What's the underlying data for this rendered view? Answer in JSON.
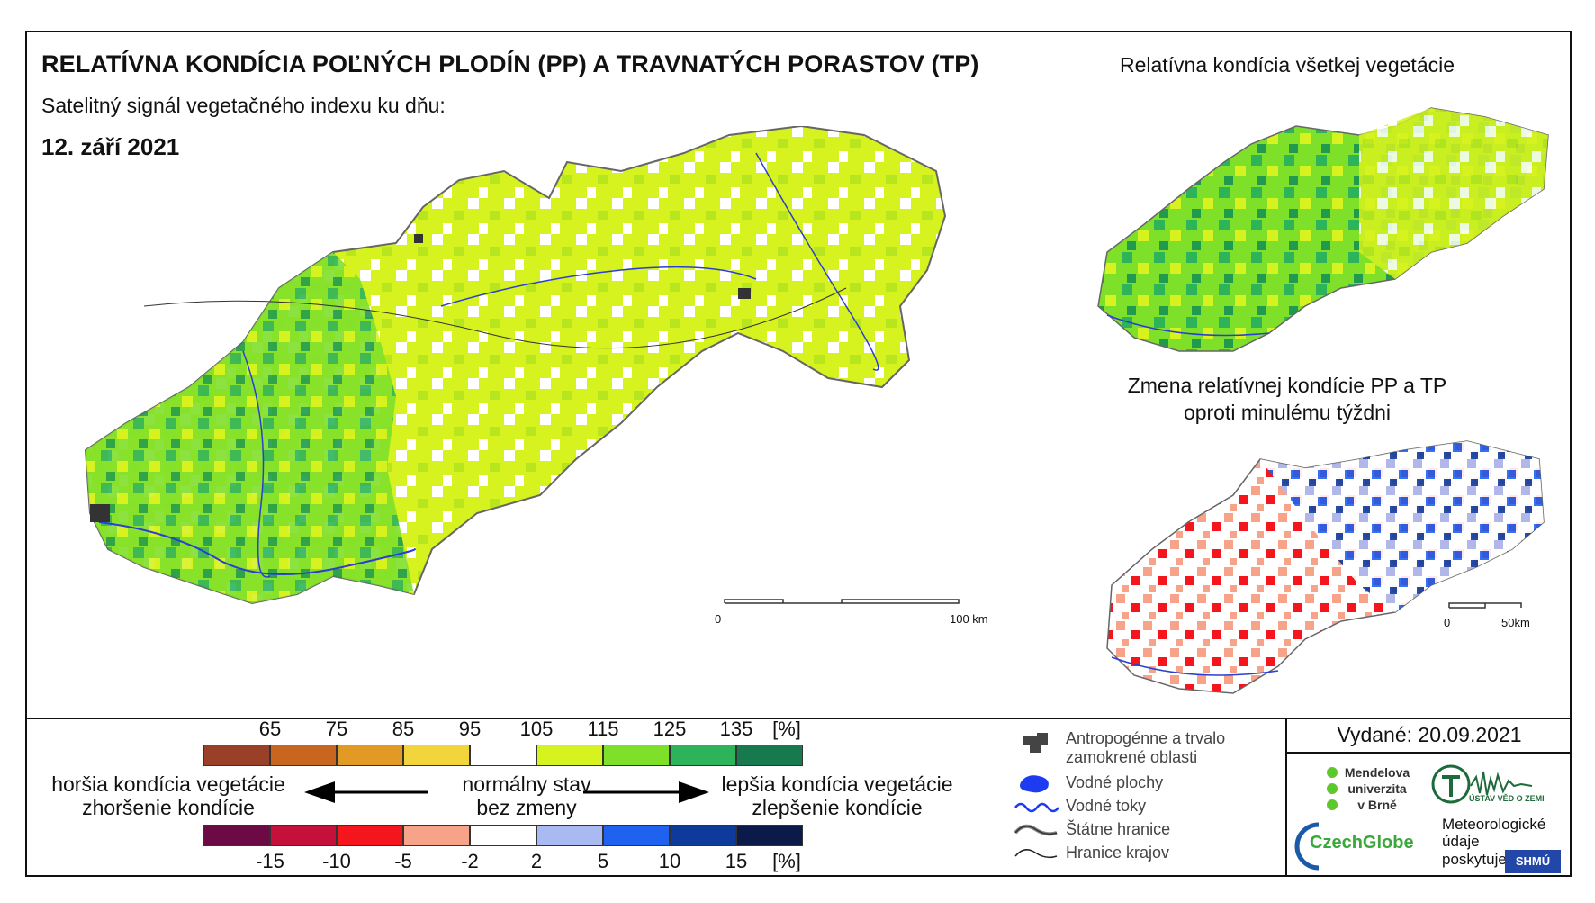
{
  "header": {
    "title": "RELATÍVNA KONDÍCIA POĽNÝCH PLODÍN (PP) A TRAVNATÝCH PORASTOV (TP)",
    "subtitle": "Satelitný signál vegetačného indexu ku dňu:",
    "date": "12. září 2021"
  },
  "right_panels": {
    "top_title": "Relatívna kondícia všetkej vegetácie",
    "bottom_title_line1": "Zmena relatívnej kondície PP a TP",
    "bottom_title_line2": "oproti minulému týždni"
  },
  "scale_bars": {
    "main_start": "0",
    "main_end": "100 km",
    "small_start": "0",
    "small_end": "50km"
  },
  "condition_scale": {
    "ticks": [
      "65",
      "75",
      "85",
      "95",
      "105",
      "115",
      "125",
      "135",
      "[%]"
    ],
    "colors": [
      "#9a3f28",
      "#c8651f",
      "#e39a25",
      "#f1d53a",
      "#ffffff",
      "#d6f21f",
      "#7fe02a",
      "#2db359",
      "#177a4e"
    ]
  },
  "change_scale": {
    "ticks": [
      "-15",
      "-10",
      "-5",
      "-2",
      "2",
      "5",
      "10",
      "15",
      "[%]"
    ],
    "colors": [
      "#6b0a44",
      "#c4103a",
      "#f5151c",
      "#f7a38a",
      "#ffffff",
      "#a9b9f2",
      "#1f62f0",
      "#0e3a9c",
      "#0c1a4a"
    ]
  },
  "labels": {
    "worse_line1": "horšia kondícia vegetácie",
    "worse_line2": "zhoršenie kondície",
    "normal_line1": "normálny stav",
    "normal_line2": "bez zmeny",
    "better_line1": "lepšia kondícia vegetácie",
    "better_line2": "zlepšenie kondície"
  },
  "map_legend": {
    "anthro_line1": "Antropogénne a trvalo",
    "anthro_line2": "zamokrené oblasti",
    "water_areas": "Vodné plochy",
    "rivers": "Vodné toky",
    "state_borders": "Štátne hranice",
    "region_borders": "Hranice krajov"
  },
  "issued": "Vydané: 20.09.2021",
  "logos": {
    "mendel_line1": "Mendelova",
    "mendel_line2": "univerzita",
    "mendel_line3": "v Brně",
    "czechglobe": "CzechGlobe",
    "ustav": "ÚSTAV VĚD O ZEMI",
    "meteo_line1": "Meteorologické",
    "meteo_line2": "údaje",
    "meteo_line3": "poskytuje:",
    "shmu": "SHMÚ"
  }
}
